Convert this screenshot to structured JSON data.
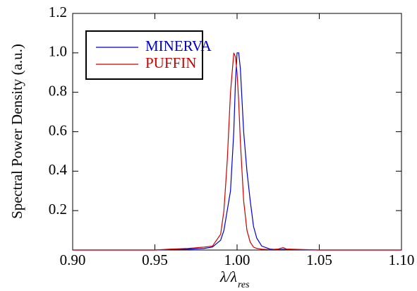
{
  "chart_data": {
    "type": "line",
    "y_label": "Spectral Power Density (a.u.)",
    "x_label": "λ/λ",
    "x_label_subscript": "res",
    "x": [
      0.9,
      0.95,
      0.96,
      0.97,
      0.98,
      0.985,
      0.99,
      0.992,
      0.994,
      0.996,
      0.998,
      0.999,
      1.0,
      1.001,
      1.002,
      1.004,
      1.006,
      1.008,
      1.01,
      1.012,
      1.015,
      1.02,
      1.025,
      1.028,
      1.03,
      1.05,
      1.1
    ],
    "series": [
      {
        "name": "MINERVA",
        "color": "#0000cc",
        "values": [
          0,
          0,
          0.002,
          0.004,
          0.008,
          0.015,
          0.05,
          0.1,
          0.2,
          0.3,
          0.6,
          0.85,
          1.0,
          1.0,
          0.92,
          0.6,
          0.4,
          0.25,
          0.12,
          0.06,
          0.02,
          0.005,
          0.002,
          0.003,
          0.002,
          0,
          0
        ]
      },
      {
        "name": "PUFFIN",
        "color": "#cc0000",
        "values": [
          0,
          0,
          0.005,
          0.008,
          0.015,
          0.02,
          0.08,
          0.2,
          0.45,
          0.8,
          1.0,
          0.98,
          0.9,
          0.75,
          0.55,
          0.25,
          0.1,
          0.04,
          0.015,
          0.008,
          0.004,
          0.002,
          0.005,
          0.012,
          0.005,
          0,
          0
        ]
      }
    ],
    "xlim": [
      0.9,
      1.1
    ],
    "xticks": [
      {
        "value": 0.9,
        "label": "0.90"
      },
      {
        "value": 0.95,
        "label": "0.95"
      },
      {
        "value": 1,
        "label": "1.00"
      },
      {
        "value": 1.05,
        "label": "1.05"
      },
      {
        "value": 1.1,
        "label": "1.10"
      }
    ],
    "ylim": [
      0,
      1.2
    ],
    "yticks": [
      0.2,
      0.4,
      0.6,
      0.8,
      {
        "value": 1,
        "label": "1.0"
      },
      1.2
    ],
    "grid": false,
    "legend": "upper left"
  }
}
